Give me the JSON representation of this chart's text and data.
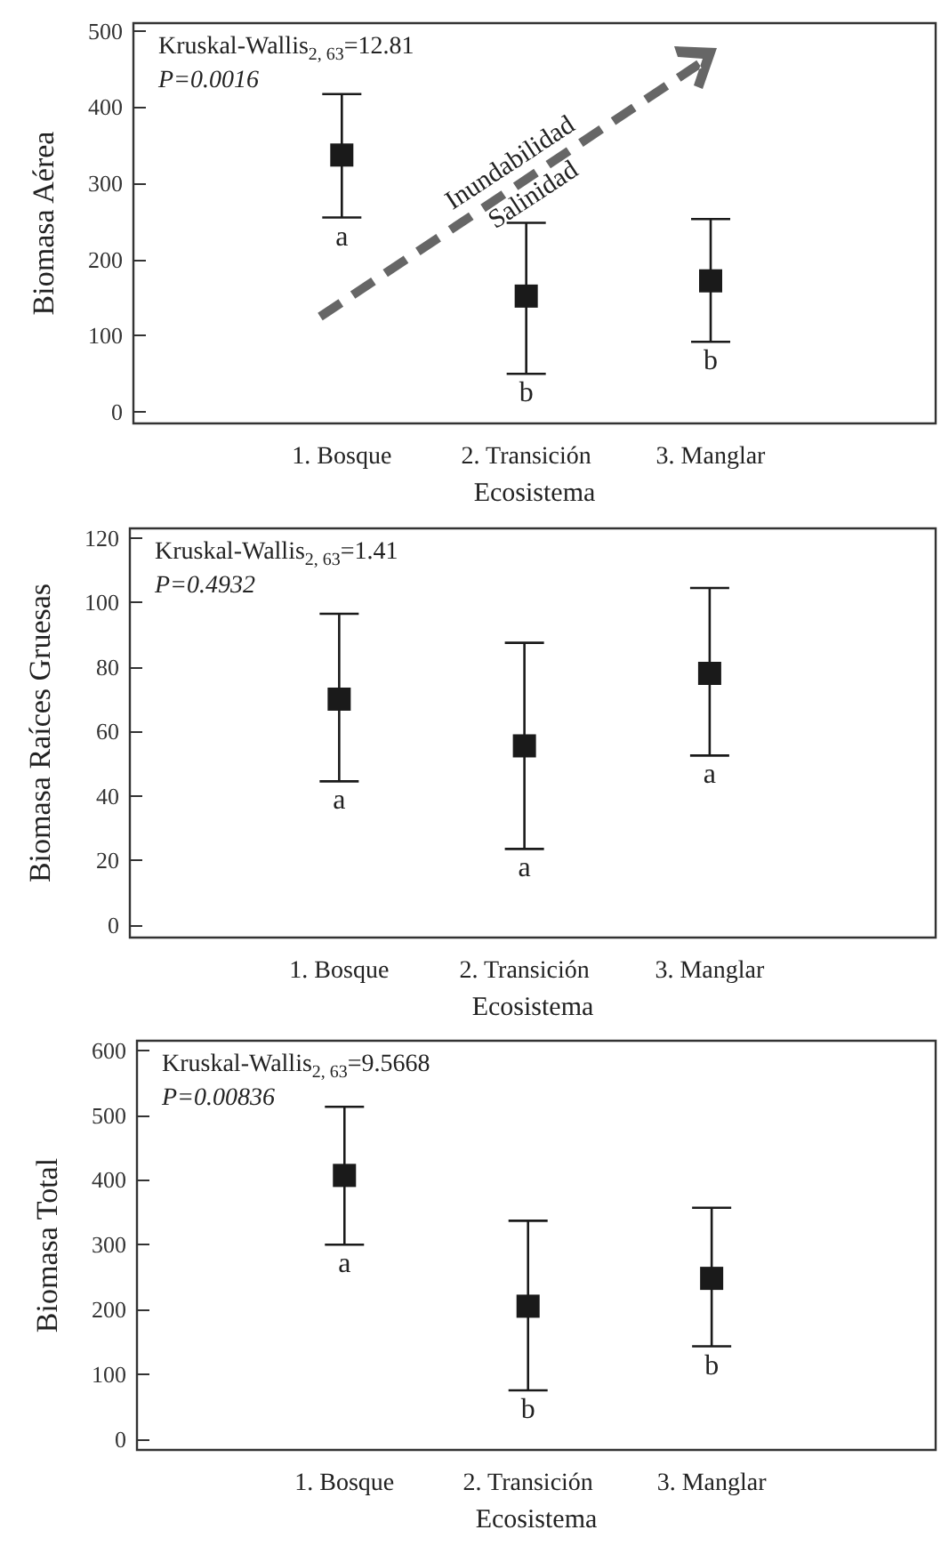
{
  "chart_data": [
    {
      "type": "scatter",
      "xlabel": "Ecosistema",
      "ylabel": "Biomasa Aérea",
      "categories": [
        "1. Bosque",
        "2. Transición",
        "3. Manglar"
      ],
      "marker": "square",
      "grid": false,
      "ylim": [
        -15,
        510
      ],
      "yticks": [
        0,
        100,
        200,
        300,
        400,
        500
      ],
      "series": [
        {
          "color": "#1a1a1a",
          "values": [
            337,
            152,
            172
          ],
          "errors": [
            [
              255,
              417
            ],
            [
              50,
              248
            ],
            [
              92,
              253
            ]
          ]
        }
      ],
      "annotations": [
        "Kruskal-Wallis$_{2, 63}$=12.81",
        "P=0.0016",
        "Inundabilidad",
        "Salinidad",
        {
          "text": "a",
          "x": "1. Bosque",
          "y": 255
        },
        {
          "text": "b",
          "x": "2. Transición",
          "y": 50
        },
        {
          "text": "b",
          "x": "3. Manglar",
          "y": 92
        }
      ]
    },
    {
      "type": "scatter",
      "xlabel": "Ecosistema",
      "ylabel": "Biomasa Raíces Gruesas",
      "categories": [
        "1. Bosque",
        "2. Transición",
        "3. Manglar"
      ],
      "marker": "square",
      "grid": false,
      "ylim": [
        -4,
        123
      ],
      "yticks": [
        0,
        20,
        40,
        60,
        80,
        100,
        120
      ],
      "series": [
        {
          "color": "#1a1a1a",
          "values": [
            70,
            55.5,
            78
          ],
          "errors": [
            [
              44.5,
              96.5
            ],
            [
              23.5,
              87.5
            ],
            [
              52.5,
              104.5
            ]
          ]
        }
      ],
      "annotations": [
        "Kruskal-Wallis$_{2, 63}$=1.41",
        "P=0.4932",
        {
          "text": "a",
          "x": "1. Bosque",
          "y": 44.5
        },
        {
          "text": "a",
          "x": "2. Transición",
          "y": 23.5
        },
        {
          "text": "a",
          "x": "3. Manglar",
          "y": 52.5
        }
      ]
    },
    {
      "type": "scatter",
      "xlabel": "Ecosistema",
      "ylabel": "Biomasa Total",
      "categories": [
        "1. Bosque",
        "2. Transición",
        "3. Manglar"
      ],
      "marker": "square",
      "grid": false,
      "ylim": [
        -17,
        615
      ],
      "yticks": [
        0,
        100,
        200,
        300,
        400,
        500,
        600
      ],
      "series": [
        {
          "color": "#1a1a1a",
          "values": [
            407,
            205,
            248
          ],
          "errors": [
            [
              300,
              513
            ],
            [
              75,
              337
            ],
            [
              143,
              357
            ]
          ]
        }
      ],
      "annotations": [
        "Kruskal-Wallis$_{2, 63}$=9.5668",
        "P=0.00836",
        {
          "text": "a",
          "x": "1. Bosque",
          "y": 300
        },
        {
          "text": "b",
          "x": "2. Transición",
          "y": 75
        },
        {
          "text": "b",
          "x": "3. Manglar",
          "y": 143
        }
      ]
    }
  ]
}
